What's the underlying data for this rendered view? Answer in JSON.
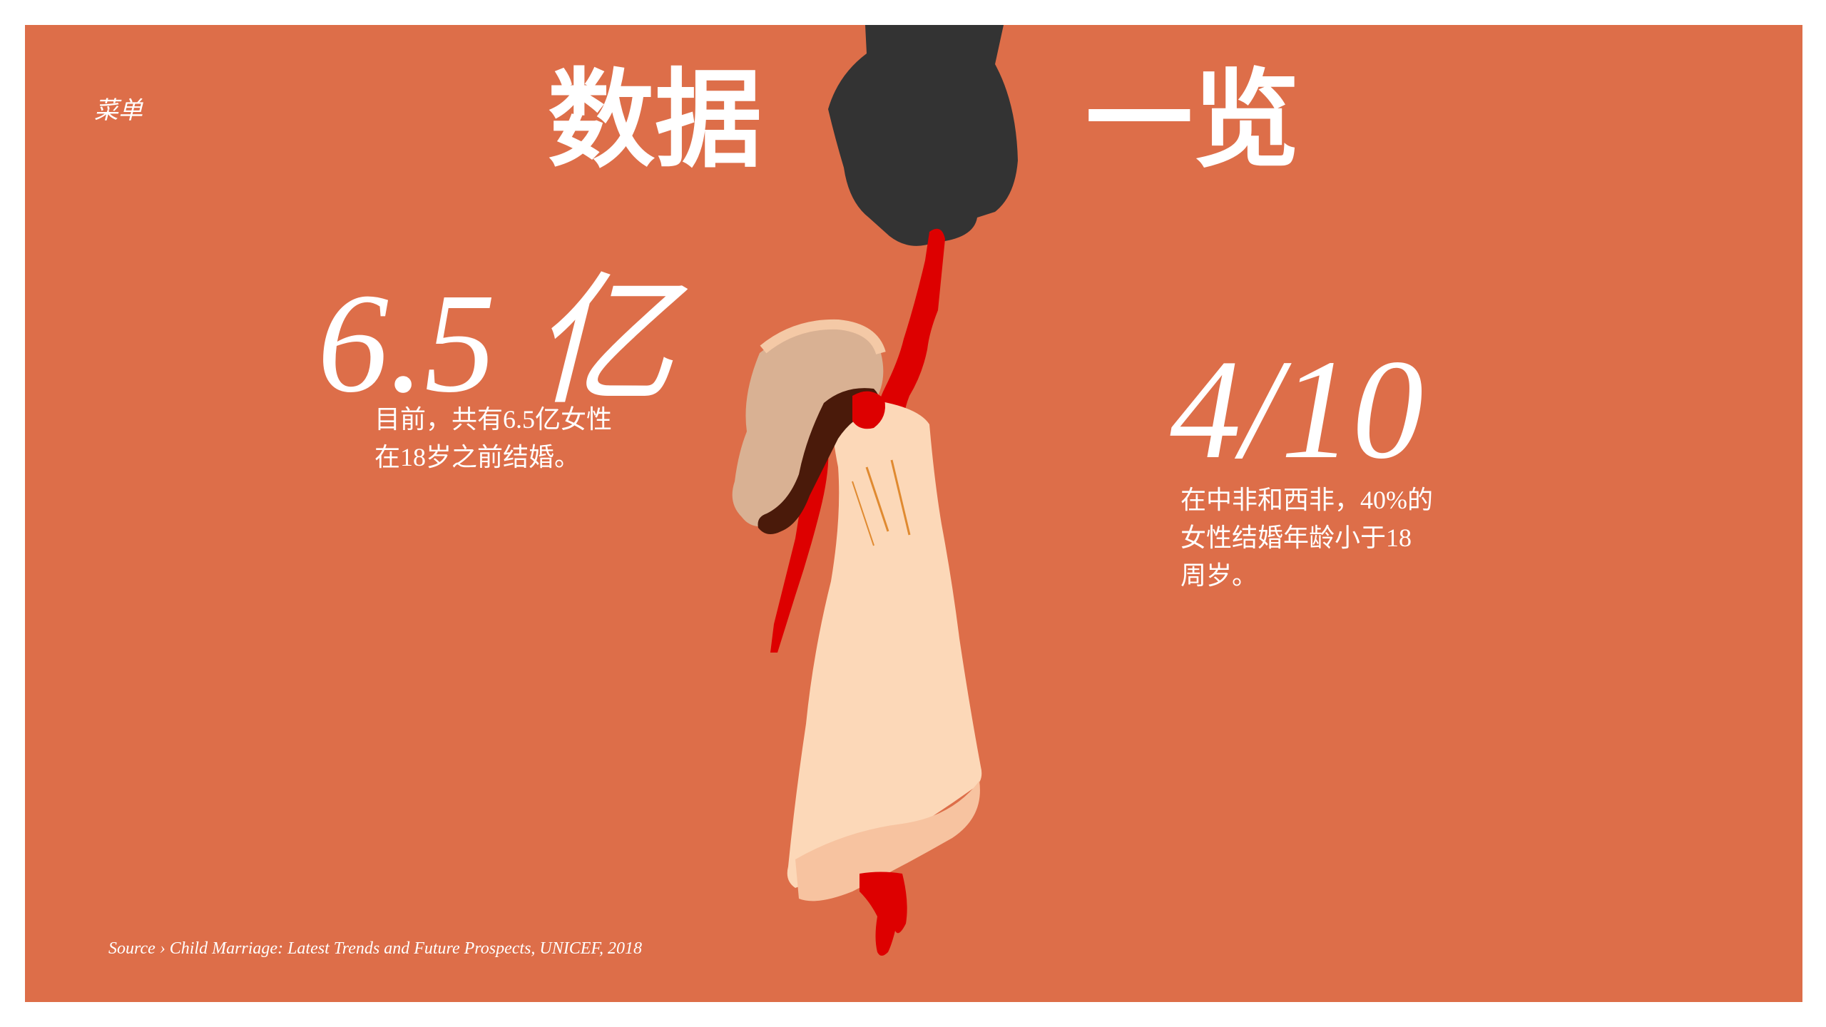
{
  "menu": {
    "label": "菜单"
  },
  "header": {
    "title_left": "数据",
    "title_right": "一览"
  },
  "stats": [
    {
      "value": "6.5 亿",
      "lines": [
        "目前，共有6.5亿女性",
        "在18岁之前结婚。"
      ]
    },
    {
      "value": "4/10",
      "lines": [
        "在中非和西非，40%的",
        "女性结婚年龄小于18",
        "周岁。"
      ]
    }
  ],
  "source": "Source › Child Marriage: Latest Trends and Future Prospects, UNICEF, 2018",
  "colors": {
    "background": "#dd6e49",
    "text": "#ffffff",
    "sleeve": "#333333",
    "red": "#dd0000",
    "dress": "#fcd8b8",
    "veil": "#d9b193",
    "hair": "#4a1a0a"
  },
  "illustration": {
    "subject": "adult-hand-holding-girl-arm",
    "icons": [
      "sleeve-icon",
      "red-arm-icon",
      "girl-dress-icon",
      "veil-icon",
      "hair-icon",
      "red-legs-icon"
    ]
  }
}
